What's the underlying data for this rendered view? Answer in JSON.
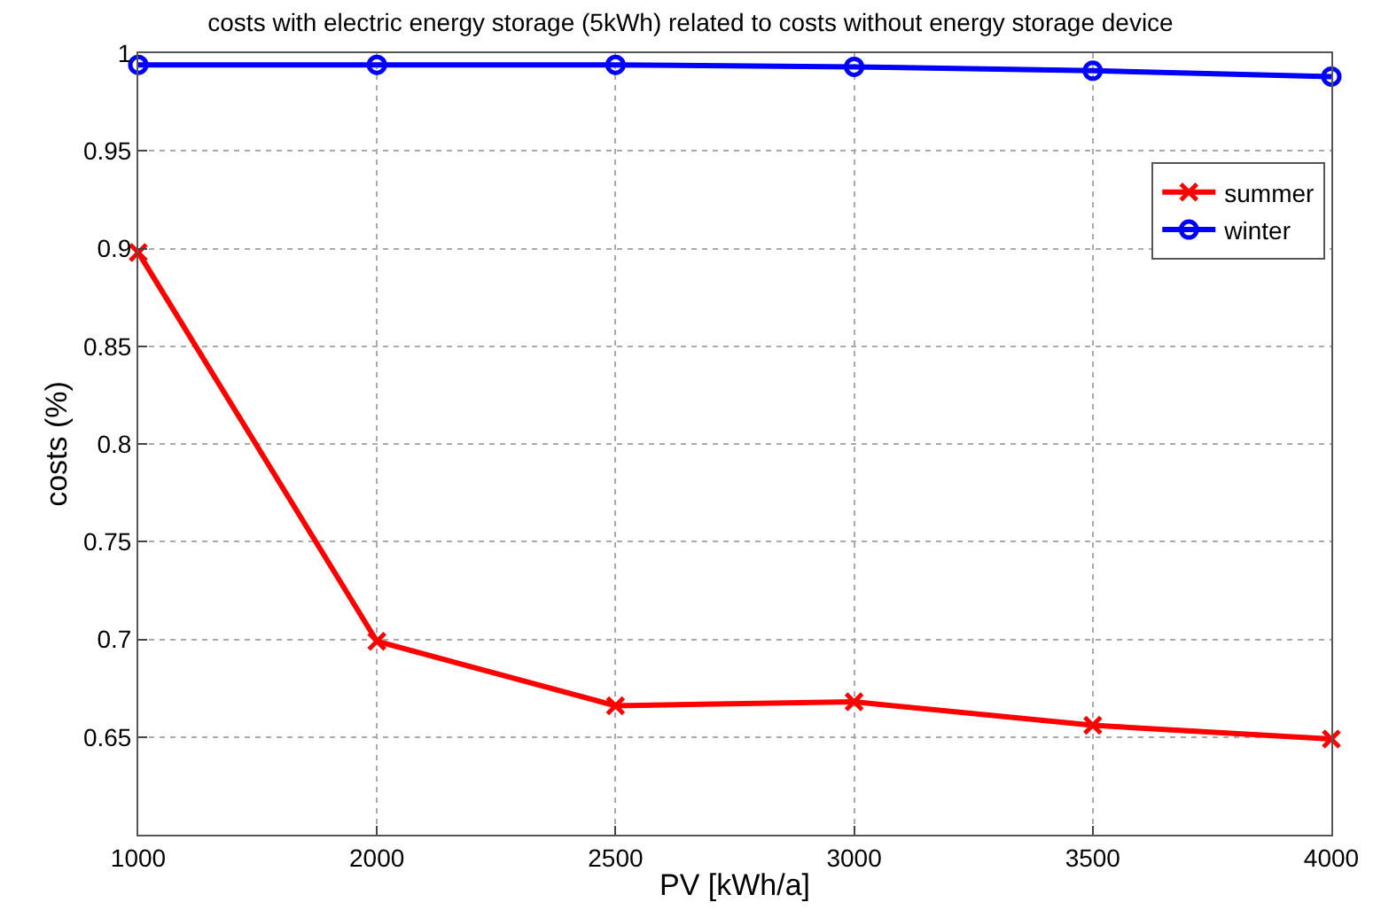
{
  "chart_data": {
    "type": "line",
    "title": "costs with electric energy storage (5kWh) related to costs without energy storage device",
    "xlabel": "PV [kWh/a]",
    "ylabel": "costs (%)",
    "categories": [
      "1000",
      "2000",
      "2500",
      "3000",
      "3500",
      "4000"
    ],
    "series": [
      {
        "name": "summer",
        "color": "#ff0000",
        "marker": "cross",
        "values": [
          0.898,
          0.699,
          0.666,
          0.668,
          0.656,
          0.649
        ]
      },
      {
        "name": "winter",
        "color": "#0000ff",
        "marker": "circle",
        "values": [
          0.994,
          0.994,
          0.994,
          0.993,
          0.991,
          0.988
        ]
      }
    ],
    "ylim": [
      0.6,
      1
    ],
    "yticks": [
      0.65,
      0.7,
      0.75,
      0.8,
      0.85,
      0.9,
      0.95,
      1
    ],
    "grid": true,
    "legend": "top right",
    "line_style": "solid"
  }
}
